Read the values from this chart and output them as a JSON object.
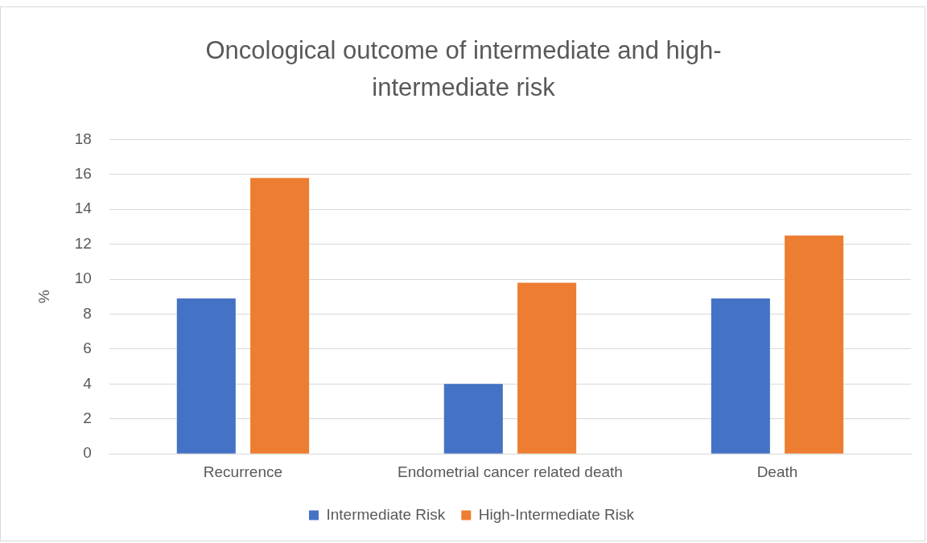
{
  "chart_data": {
    "type": "bar",
    "title": "Oncological outcome of intermediate and high-intermediate risk",
    "ylabel": "%",
    "categories": [
      "Recurrence",
      "Endometrial cancer related death",
      "Death"
    ],
    "series": [
      {
        "name": "Intermediate Risk",
        "color": "#4472c4",
        "values": [
          8.9,
          4.0,
          8.9
        ]
      },
      {
        "name": "High-Intermediate Risk",
        "color": "#ed7d31",
        "values": [
          15.8,
          9.8,
          12.5
        ]
      }
    ],
    "ylim": [
      0,
      18
    ],
    "yticks": [
      0,
      2,
      4,
      6,
      8,
      10,
      12,
      14,
      16,
      18
    ],
    "grid": "y",
    "legend": "bottom"
  }
}
